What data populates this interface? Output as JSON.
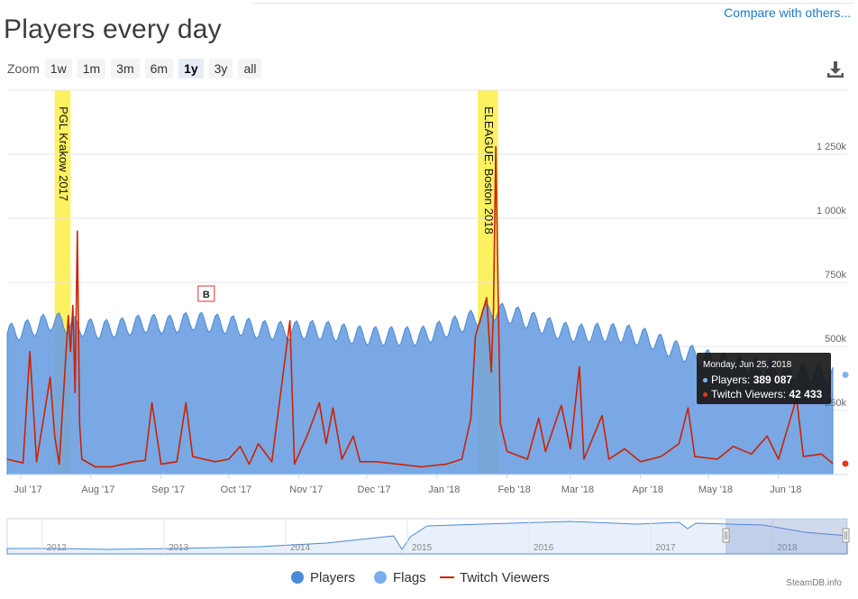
{
  "header": {
    "title": "Players every day",
    "compare_link": "Compare with others..."
  },
  "zoom": {
    "label": "Zoom",
    "options": [
      "1w",
      "1m",
      "3m",
      "6m",
      "1y",
      "3y",
      "all"
    ],
    "selected": "1y"
  },
  "toolbar": {
    "download_icon": "download-icon"
  },
  "chart_data": {
    "type": "area",
    "y_ticks": [
      "250k",
      "500k",
      "750k",
      "1 000k",
      "1 250k"
    ],
    "ylim": [
      0,
      1500000
    ],
    "x_tick_labels": [
      "Jul '17",
      "Aug '17",
      "Sep '17",
      "Oct '17",
      "Nov '17",
      "Dec '17",
      "Jan '18",
      "Feb '18",
      "Mar '18",
      "Apr '18",
      "May '18",
      "Jun '18"
    ],
    "x_range": [
      "2017-06-25",
      "2018-06-25"
    ],
    "grid": true,
    "colors": {
      "players": "#6a9fe2",
      "players_line": "#4a8ad8",
      "twitch": "#cc2200",
      "event_band": "#fdf05a"
    },
    "series": [
      {
        "name": "Players",
        "type": "area",
        "points": [
          [
            "2017-06-25",
            550000
          ],
          [
            "2017-07-05",
            570000
          ],
          [
            "2017-07-15",
            600000
          ],
          [
            "2017-07-25",
            580000
          ],
          [
            "2017-08-05",
            565000
          ],
          [
            "2017-08-15",
            575000
          ],
          [
            "2017-08-25",
            590000
          ],
          [
            "2017-09-05",
            585000
          ],
          [
            "2017-09-15",
            600000
          ],
          [
            "2017-09-25",
            590000
          ],
          [
            "2017-10-05",
            580000
          ],
          [
            "2017-10-15",
            565000
          ],
          [
            "2017-10-25",
            560000
          ],
          [
            "2017-11-05",
            565000
          ],
          [
            "2017-11-15",
            560000
          ],
          [
            "2017-11-25",
            545000
          ],
          [
            "2017-12-05",
            540000
          ],
          [
            "2017-12-15",
            540000
          ],
          [
            "2017-12-25",
            540000
          ],
          [
            "2018-01-05",
            570000
          ],
          [
            "2018-01-15",
            600000
          ],
          [
            "2018-01-25",
            640000
          ],
          [
            "2018-02-05",
            620000
          ],
          [
            "2018-02-15",
            590000
          ],
          [
            "2018-02-25",
            560000
          ],
          [
            "2018-03-05",
            550000
          ],
          [
            "2018-03-15",
            555000
          ],
          [
            "2018-03-25",
            550000
          ],
          [
            "2018-04-05",
            530000
          ],
          [
            "2018-04-15",
            490000
          ],
          [
            "2018-04-25",
            465000
          ],
          [
            "2018-05-05",
            440000
          ],
          [
            "2018-05-15",
            430000
          ],
          [
            "2018-05-25",
            420000
          ],
          [
            "2018-06-05",
            405000
          ],
          [
            "2018-06-15",
            395000
          ],
          [
            "2018-06-25",
            389087
          ]
        ]
      },
      {
        "name": "Twitch Viewers",
        "type": "line",
        "points": [
          [
            "2017-06-25",
            60000
          ],
          [
            "2017-07-02",
            45000
          ],
          [
            "2017-07-05",
            480000
          ],
          [
            "2017-07-08",
            50000
          ],
          [
            "2017-07-14",
            380000
          ],
          [
            "2017-07-16",
            150000
          ],
          [
            "2017-07-18",
            40000
          ],
          [
            "2017-07-22",
            620000
          ],
          [
            "2017-07-23",
            480000
          ],
          [
            "2017-07-24",
            660000
          ],
          [
            "2017-07-25",
            320000
          ],
          [
            "2017-07-26",
            950000
          ],
          [
            "2017-07-27",
            200000
          ],
          [
            "2017-07-28",
            60000
          ],
          [
            "2017-08-03",
            30000
          ],
          [
            "2017-08-10",
            30000
          ],
          [
            "2017-08-20",
            50000
          ],
          [
            "2017-08-25",
            55000
          ],
          [
            "2017-08-28",
            280000
          ],
          [
            "2017-09-01",
            40000
          ],
          [
            "2017-09-08",
            50000
          ],
          [
            "2017-09-12",
            280000
          ],
          [
            "2017-09-15",
            70000
          ],
          [
            "2017-09-25",
            50000
          ],
          [
            "2017-10-01",
            60000
          ],
          [
            "2017-10-06",
            110000
          ],
          [
            "2017-10-10",
            40000
          ],
          [
            "2017-10-14",
            120000
          ],
          [
            "2017-10-20",
            50000
          ],
          [
            "2017-10-28",
            600000
          ],
          [
            "2017-10-30",
            40000
          ],
          [
            "2017-11-05",
            160000
          ],
          [
            "2017-11-10",
            280000
          ],
          [
            "2017-11-13",
            120000
          ],
          [
            "2017-11-16",
            260000
          ],
          [
            "2017-11-20",
            60000
          ],
          [
            "2017-11-25",
            150000
          ],
          [
            "2017-11-28",
            50000
          ],
          [
            "2017-12-05",
            50000
          ],
          [
            "2017-12-15",
            40000
          ],
          [
            "2017-12-25",
            30000
          ],
          [
            "2018-01-05",
            40000
          ],
          [
            "2018-01-12",
            60000
          ],
          [
            "2018-01-16",
            220000
          ],
          [
            "2018-01-18",
            540000
          ],
          [
            "2018-01-20",
            600000
          ],
          [
            "2018-01-23",
            690000
          ],
          [
            "2018-01-25",
            400000
          ],
          [
            "2018-01-26",
            650000
          ],
          [
            "2018-01-27",
            1280000
          ],
          [
            "2018-01-29",
            200000
          ],
          [
            "2018-02-01",
            90000
          ],
          [
            "2018-02-10",
            60000
          ],
          [
            "2018-02-15",
            220000
          ],
          [
            "2018-02-18",
            90000
          ],
          [
            "2018-02-25",
            270000
          ],
          [
            "2018-03-01",
            100000
          ],
          [
            "2018-03-05",
            420000
          ],
          [
            "2018-03-07",
            60000
          ],
          [
            "2018-03-15",
            230000
          ],
          [
            "2018-03-18",
            60000
          ],
          [
            "2018-03-25",
            100000
          ],
          [
            "2018-04-01",
            50000
          ],
          [
            "2018-04-10",
            70000
          ],
          [
            "2018-04-18",
            120000
          ],
          [
            "2018-04-22",
            260000
          ],
          [
            "2018-04-25",
            70000
          ],
          [
            "2018-05-05",
            60000
          ],
          [
            "2018-05-12",
            110000
          ],
          [
            "2018-05-20",
            80000
          ],
          [
            "2018-05-27",
            150000
          ],
          [
            "2018-06-01",
            60000
          ],
          [
            "2018-06-09",
            300000
          ],
          [
            "2018-06-12",
            70000
          ],
          [
            "2018-06-20",
            80000
          ],
          [
            "2018-06-25",
            42433
          ]
        ]
      }
    ],
    "event_bands": [
      {
        "label": "PGL Krakow 2017",
        "start": "2017-07-16",
        "end": "2017-07-23"
      },
      {
        "label": "ELEAGUE: Boston 2018",
        "start": "2018-01-19",
        "end": "2018-01-28"
      }
    ],
    "flags": [
      {
        "label": "B",
        "date": "2017-09-21"
      }
    ],
    "tooltip": {
      "date": "Monday, Jun 25, 2018",
      "players_label": "Players:",
      "players_value": "389 087",
      "twitch_label": "Twitch Viewers:",
      "twitch_value": "42 433"
    },
    "navigator": {
      "year_labels": [
        "2012",
        "2013",
        "2014",
        "2015",
        "2016",
        "2017",
        "2018"
      ],
      "selected_range": [
        "2017-06-25",
        "2018-06-25"
      ]
    },
    "legend": {
      "placement": "bottom",
      "items": [
        {
          "label": "Players",
          "symbol": "circle",
          "color": "#4a8ad8"
        },
        {
          "label": "Flags",
          "symbol": "circle",
          "color": "#7aaeea"
        },
        {
          "label": "Twitch Viewers",
          "symbol": "line",
          "color": "#cc2200"
        }
      ]
    }
  },
  "footer": {
    "credit": "SteamDB.info"
  }
}
